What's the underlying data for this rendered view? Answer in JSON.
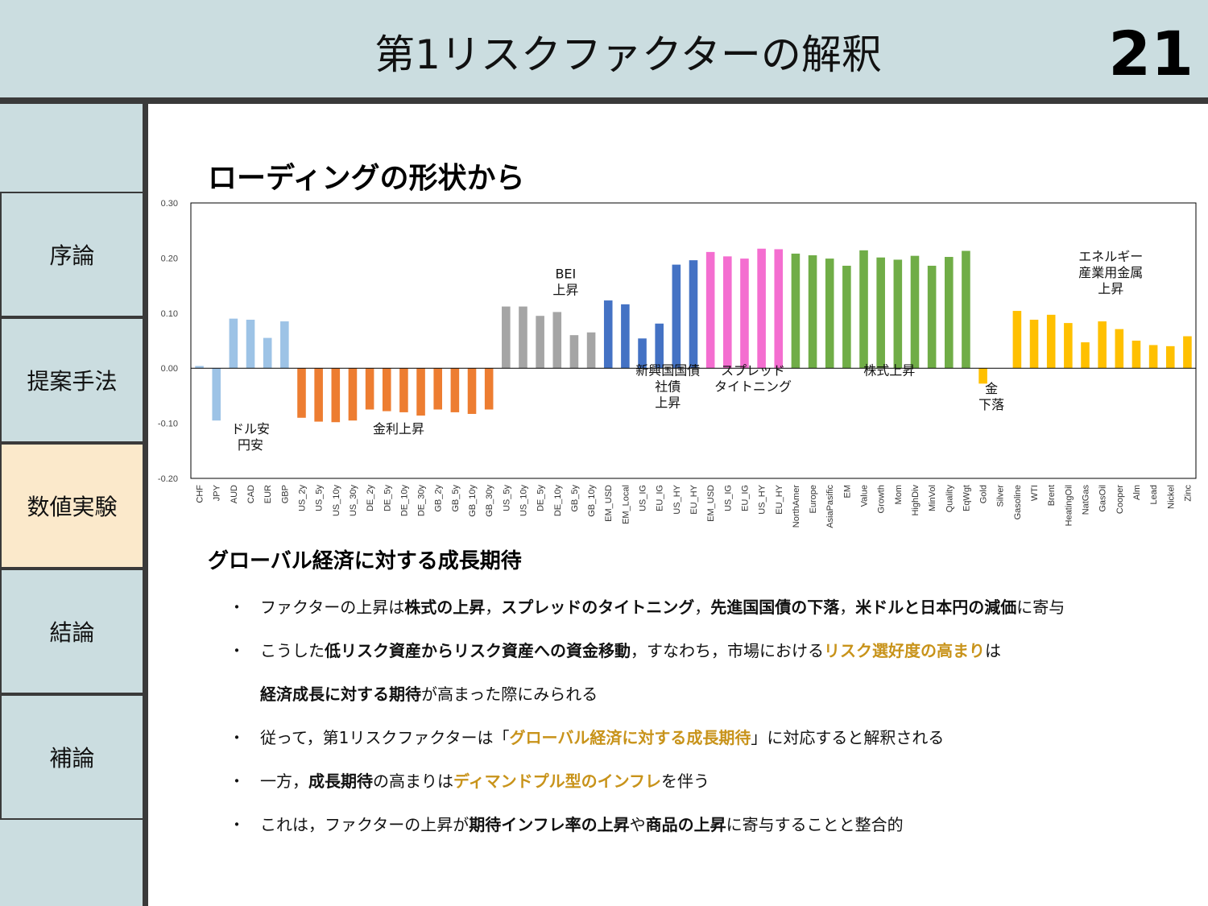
{
  "header": {
    "title": "第1リスクファクターの解釈",
    "page_number": "21"
  },
  "sidebar": {
    "items": [
      {
        "label": "序論"
      },
      {
        "label": "提案手法"
      },
      {
        "label": "数値実験"
      },
      {
        "label": "結論"
      },
      {
        "label": "補論"
      }
    ],
    "active_index": 2
  },
  "colors": {
    "header_bg": "#cbdde0",
    "active_nav_bg": "#fbe9cb",
    "highlight": "#c8931a"
  },
  "sections": {
    "heading1": "ローディングの形状から",
    "heading2": "グローバル経済に対する成長期待"
  },
  "bullets": [
    {
      "dot": "・",
      "segments": [
        {
          "t": "ファクターの上昇は",
          "s": ""
        },
        {
          "t": "株式の上昇",
          "s": "b"
        },
        {
          "t": "，",
          "s": ""
        },
        {
          "t": "スプレッドのタイトニング",
          "s": "b"
        },
        {
          "t": "，",
          "s": ""
        },
        {
          "t": "先進国国債の下落",
          "s": "b"
        },
        {
          "t": "，",
          "s": ""
        },
        {
          "t": "米ドルと日本円の減価",
          "s": "b"
        },
        {
          "t": "に寄与",
          "s": ""
        }
      ]
    },
    {
      "dot": "・",
      "segments": [
        {
          "t": "こうした",
          "s": ""
        },
        {
          "t": "低リスク資産からリスク資産への資金移動",
          "s": "b"
        },
        {
          "t": "，すなわち，市場における",
          "s": ""
        },
        {
          "t": "リスク選好度の高まり",
          "s": "h"
        },
        {
          "t": "は",
          "s": ""
        }
      ]
    },
    {
      "dot": "",
      "segments": [
        {
          "t": "経済成長に対する期待",
          "s": "b"
        },
        {
          "t": "が高まった際にみられる",
          "s": ""
        }
      ]
    },
    {
      "dot": "・",
      "segments": [
        {
          "t": "従って，第1リスクファクターは「",
          "s": ""
        },
        {
          "t": "グローバル経済に対する成長期待",
          "s": "h"
        },
        {
          "t": "」に対応すると解釈される",
          "s": ""
        }
      ]
    },
    {
      "dot": "・",
      "segments": [
        {
          "t": "一方，",
          "s": ""
        },
        {
          "t": "成長期待",
          "s": "b"
        },
        {
          "t": "の高まりは",
          "s": ""
        },
        {
          "t": "ディマンドプル型のインフレ",
          "s": "h"
        },
        {
          "t": "を伴う",
          "s": ""
        }
      ]
    },
    {
      "dot": "・",
      "segments": [
        {
          "t": "これは，ファクターの上昇が",
          "s": ""
        },
        {
          "t": "期待インフレ率の上昇",
          "s": "b"
        },
        {
          "t": "や",
          "s": ""
        },
        {
          "t": "商品の上昇",
          "s": "b"
        },
        {
          "t": "に寄与することと整合的",
          "s": ""
        }
      ]
    }
  ],
  "chart_data": {
    "type": "bar",
    "ylim": [
      -0.2,
      0.3
    ],
    "yticks": [
      "0.30",
      "0.20",
      "0.10",
      "0.00",
      "-0.10",
      "-0.20"
    ],
    "ytick_values": [
      0.3,
      0.2,
      0.1,
      0.0,
      -0.1,
      -0.2
    ],
    "grid": false,
    "categories": [
      "CHF",
      "JPY",
      "AUD",
      "CAD",
      "EUR",
      "GBP",
      "US_2y",
      "US_5y",
      "US_10y",
      "US_30y",
      "DE_2y",
      "DE_5y",
      "DE_10y",
      "DE_30y",
      "GB_2y",
      "GB_5y",
      "GB_10y",
      "GB_30y",
      "US_5y",
      "US_10y",
      "DE_5y",
      "DE_10y",
      "GB_5y",
      "GB_10y",
      "EM_USD",
      "EM_Local",
      "US_IG",
      "EU_IG",
      "US_HY",
      "EU_HY",
      "EM_USD",
      "US_IG",
      "EU_IG",
      "US_HY",
      "EU_HY",
      "NorthAmer",
      "Europe",
      "AsiaPasific",
      "EM",
      "Value",
      "Growth",
      "Mom",
      "HighDiv",
      "MinVol",
      "Quality",
      "EqWgt",
      "Gold",
      "Silver",
      "Gasoline",
      "WTI",
      "Brent",
      "HeatingOil",
      "NatGas",
      "GasOil",
      "Cooper",
      "Alm",
      "Lead",
      "Nickel",
      "Zinc"
    ],
    "values": [
      0.004,
      -0.095,
      0.09,
      0.088,
      0.055,
      0.085,
      -0.09,
      -0.097,
      -0.098,
      -0.095,
      -0.075,
      -0.078,
      -0.08,
      -0.086,
      -0.075,
      -0.08,
      -0.083,
      -0.075,
      0.112,
      0.112,
      0.095,
      0.102,
      0.06,
      0.065,
      0.123,
      0.116,
      0.054,
      0.081,
      0.188,
      0.196,
      0.211,
      0.203,
      0.199,
      0.217,
      0.216,
      0.208,
      0.205,
      0.199,
      0.186,
      0.214,
      0.201,
      0.197,
      0.204,
      0.186,
      0.202,
      0.213,
      -0.028,
      0.0,
      0.104,
      0.088,
      0.097,
      0.082,
      0.047,
      0.085,
      0.071,
      0.05,
      0.042,
      0.04,
      0.058
    ],
    "bar_colors": [
      "#9dc3e6",
      "#9dc3e6",
      "#9dc3e6",
      "#9dc3e6",
      "#9dc3e6",
      "#9dc3e6",
      "#ed7d31",
      "#ed7d31",
      "#ed7d31",
      "#ed7d31",
      "#ed7d31",
      "#ed7d31",
      "#ed7d31",
      "#ed7d31",
      "#ed7d31",
      "#ed7d31",
      "#ed7d31",
      "#ed7d31",
      "#a5a5a5",
      "#a5a5a5",
      "#a5a5a5",
      "#a5a5a5",
      "#a5a5a5",
      "#a5a5a5",
      "#4472c4",
      "#4472c4",
      "#4472c4",
      "#4472c4",
      "#4472c4",
      "#4472c4",
      "#f46ed0",
      "#f46ed0",
      "#f46ed0",
      "#f46ed0",
      "#f46ed0",
      "#70ad47",
      "#70ad47",
      "#70ad47",
      "#70ad47",
      "#70ad47",
      "#70ad47",
      "#70ad47",
      "#70ad47",
      "#70ad47",
      "#70ad47",
      "#70ad47",
      "#ffc000",
      "#ffc000",
      "#ffc000",
      "#ffc000",
      "#ffc000",
      "#ffc000",
      "#ffc000",
      "#ffc000",
      "#ffc000",
      "#ffc000",
      "#ffc000",
      "#ffc000",
      "#ffc000"
    ],
    "annotations": [
      {
        "lines": [
          "ドル安",
          "円安"
        ],
        "cat": 3,
        "y": -0.118
      },
      {
        "lines": [
          "金利上昇"
        ],
        "cat": 11.7,
        "y": -0.118
      },
      {
        "lines": [
          "BEI",
          "上昇"
        ],
        "cat": 21.5,
        "y": 0.163
      },
      {
        "lines": [
          "新興国国債",
          "社債",
          "上昇"
        ],
        "cat": 27.5,
        "y": -0.012
      },
      {
        "lines": [
          "スプレッド",
          "タイトニング"
        ],
        "cat": 32.5,
        "y": -0.012
      },
      {
        "lines": [
          "株式上昇"
        ],
        "cat": 40.5,
        "y": -0.012
      },
      {
        "lines": [
          "金",
          "下落"
        ],
        "cat": 46.5,
        "y": -0.045
      },
      {
        "lines": [
          "エネルギー",
          "産業用金属",
          "上昇"
        ],
        "cat": 53.5,
        "y": 0.195
      }
    ]
  }
}
